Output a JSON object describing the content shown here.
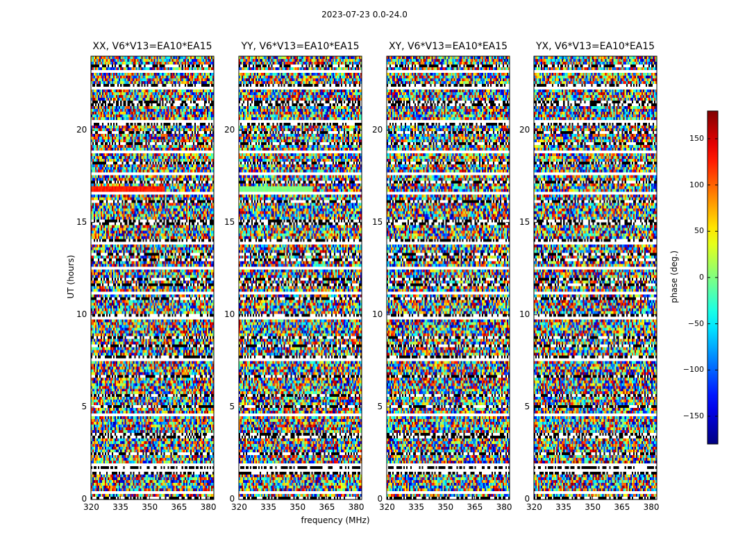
{
  "figure": {
    "suptitle": "2023-07-23 0.0-24.0",
    "xlabel": "frequency (MHz)",
    "ylabel": "UT (hours)",
    "colorbar_label": "phase (deg.)"
  },
  "chart_data": {
    "type": "heatmap",
    "title": "2023-07-23 0.0-24.0",
    "xlabel": "frequency (MHz)",
    "ylabel": "UT (hours)",
    "xlim": [
      320,
      383
    ],
    "ylim": [
      0,
      24
    ],
    "x_ticks": [
      320,
      335,
      350,
      365,
      380
    ],
    "y_ticks": [
      0,
      5,
      10,
      15,
      20
    ],
    "colorbar": {
      "label": "phase (deg.)",
      "range": [
        -180,
        180
      ],
      "ticks": [
        150,
        100,
        50,
        0,
        -50,
        -100,
        -150
      ],
      "tick_labels": [
        "150",
        "100",
        "50",
        "0",
        "−50",
        "−100",
        "−150"
      ],
      "colormap": "jet"
    },
    "panels": [
      {
        "title": "XX, V6*V13=EA10*EA15",
        "polarization": "XX"
      },
      {
        "title": "YY, V6*V13=EA10*EA15",
        "polarization": "YY"
      },
      {
        "title": "XY, V6*V13=EA10*EA15",
        "polarization": "XY"
      },
      {
        "title": "YX, V6*V13=EA10*EA15",
        "polarization": "YX"
      }
    ],
    "flagged_gaps_hours": [
      0.4,
      1.05,
      1.6,
      1.85,
      4.6,
      5.4,
      6.15,
      7.6,
      9.8,
      11.2,
      12.5,
      13.85,
      16.6,
      17.6,
      18.85,
      20.5,
      21.9,
      22.3,
      23.2
    ]
  }
}
